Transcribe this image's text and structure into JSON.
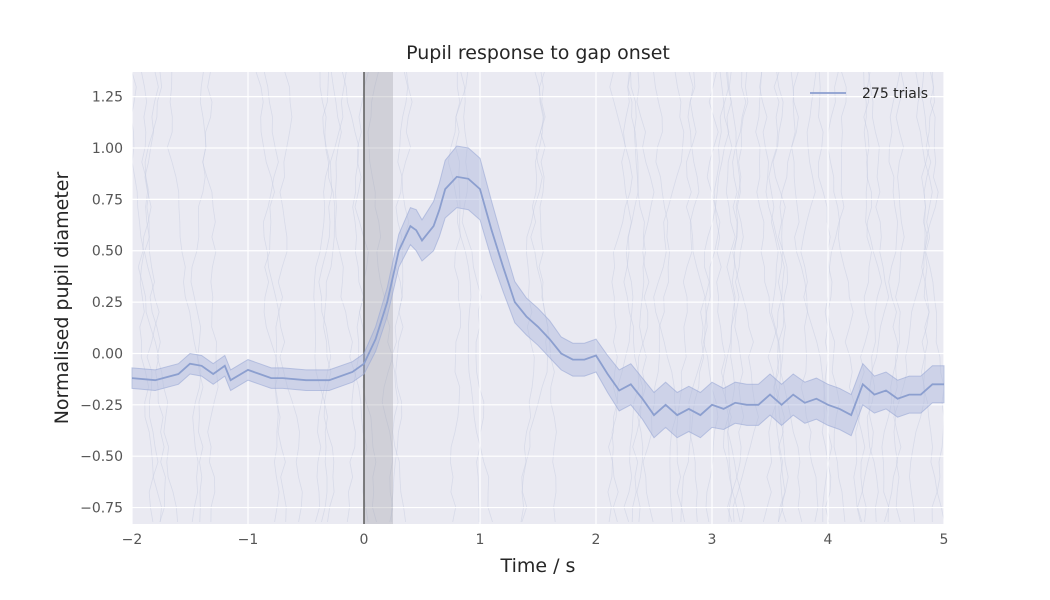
{
  "chart_data": {
    "type": "line",
    "title": "Pupil response to gap onset",
    "xlabel": "Time / s",
    "ylabel": "Normalised pupil diameter",
    "xlim": [
      -2,
      5
    ],
    "ylim": [
      -0.83,
      1.37
    ],
    "xticks": [
      -2,
      -1,
      0,
      1,
      2,
      3,
      4,
      5
    ],
    "xtick_labels": [
      "−2",
      "−1",
      "0",
      "1",
      "2",
      "3",
      "4",
      "5"
    ],
    "yticks": [
      -0.75,
      -0.5,
      -0.25,
      0.0,
      0.25,
      0.5,
      0.75,
      1.0,
      1.25
    ],
    "ytick_labels": [
      "−0.75",
      "−0.50",
      "−0.25",
      "0.00",
      "0.25",
      "0.50",
      "0.75",
      "1.00",
      "1.25"
    ],
    "grid": true,
    "legend_position": "top-right",
    "colors": {
      "background": "#eaeaf2",
      "grid": "#ffffff",
      "series": "#8c9fcf",
      "band": "#aab6dc",
      "onset_line": "#5a5a5a",
      "onset_region": "#a0a0a8"
    },
    "onset_line_x": 0,
    "shaded_region": [
      0,
      0.25
    ],
    "series": [
      {
        "name": "275 trials",
        "x": [
          -2.0,
          -1.8,
          -1.6,
          -1.5,
          -1.4,
          -1.3,
          -1.2,
          -1.15,
          -1.0,
          -0.9,
          -0.8,
          -0.7,
          -0.5,
          -0.3,
          -0.1,
          0.0,
          0.1,
          0.2,
          0.3,
          0.4,
          0.45,
          0.5,
          0.6,
          0.65,
          0.7,
          0.8,
          0.9,
          1.0,
          1.1,
          1.2,
          1.3,
          1.4,
          1.5,
          1.6,
          1.7,
          1.8,
          1.9,
          2.0,
          2.1,
          2.2,
          2.3,
          2.4,
          2.5,
          2.6,
          2.7,
          2.8,
          2.9,
          3.0,
          3.1,
          3.2,
          3.3,
          3.4,
          3.5,
          3.6,
          3.7,
          3.8,
          3.9,
          4.0,
          4.1,
          4.2,
          4.3,
          4.4,
          4.5,
          4.6,
          4.7,
          4.8,
          4.9,
          5.0
        ],
        "y": [
          -0.12,
          -0.13,
          -0.1,
          -0.05,
          -0.06,
          -0.1,
          -0.06,
          -0.13,
          -0.08,
          -0.1,
          -0.12,
          -0.12,
          -0.13,
          -0.13,
          -0.09,
          -0.05,
          0.07,
          0.25,
          0.5,
          0.62,
          0.6,
          0.55,
          0.62,
          0.7,
          0.8,
          0.86,
          0.85,
          0.8,
          0.6,
          0.42,
          0.25,
          0.18,
          0.13,
          0.07,
          0.0,
          -0.03,
          -0.03,
          -0.01,
          -0.1,
          -0.18,
          -0.15,
          -0.22,
          -0.3,
          -0.25,
          -0.3,
          -0.27,
          -0.3,
          -0.25,
          -0.27,
          -0.24,
          -0.25,
          -0.25,
          -0.2,
          -0.25,
          -0.2,
          -0.24,
          -0.22,
          -0.25,
          -0.27,
          -0.3,
          -0.15,
          -0.2,
          -0.18,
          -0.22,
          -0.2,
          -0.2,
          -0.15,
          -0.15
        ],
        "band_halfwidth": [
          0.05,
          0.05,
          0.05,
          0.05,
          0.05,
          0.05,
          0.05,
          0.05,
          0.05,
          0.05,
          0.05,
          0.05,
          0.05,
          0.05,
          0.05,
          0.05,
          0.06,
          0.07,
          0.08,
          0.09,
          0.1,
          0.1,
          0.12,
          0.13,
          0.14,
          0.15,
          0.15,
          0.15,
          0.14,
          0.12,
          0.1,
          0.09,
          0.09,
          0.09,
          0.08,
          0.08,
          0.08,
          0.08,
          0.09,
          0.1,
          0.1,
          0.1,
          0.11,
          0.11,
          0.11,
          0.11,
          0.11,
          0.11,
          0.1,
          0.1,
          0.1,
          0.1,
          0.1,
          0.1,
          0.1,
          0.1,
          0.1,
          0.1,
          0.1,
          0.1,
          0.1,
          0.09,
          0.09,
          0.09,
          0.09,
          0.09,
          0.09,
          0.09
        ]
      }
    ]
  }
}
